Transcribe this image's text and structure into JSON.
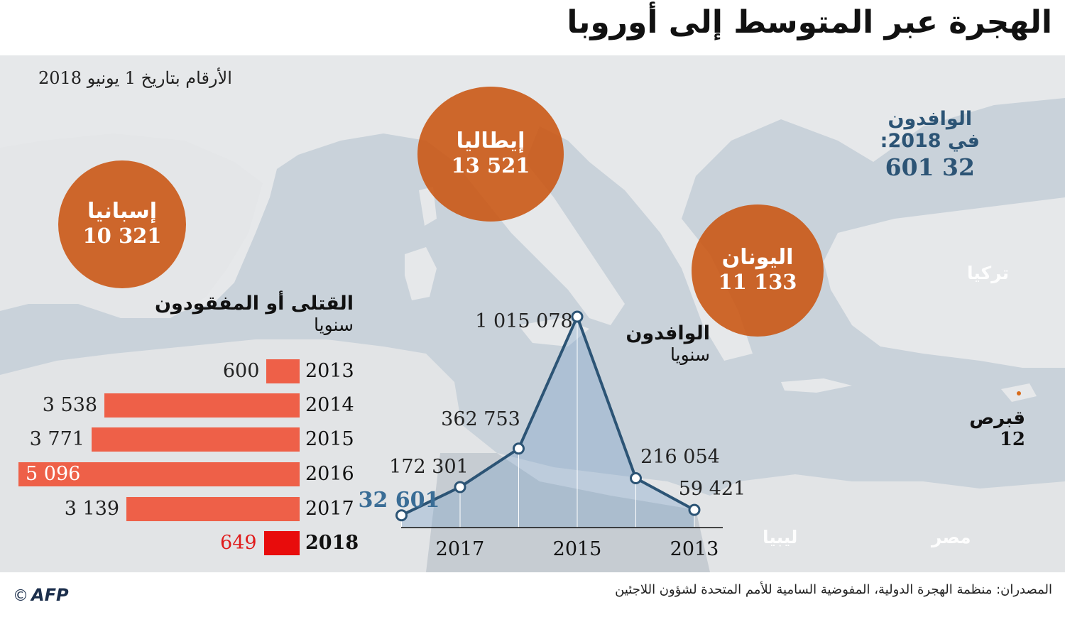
{
  "title": "الهجرة عبر المتوسط إلى أوروبا",
  "date_note": "الأرقام بتاريخ 1 يونيو 2018",
  "bubbles": {
    "spain": {
      "name": "إسبانيا",
      "value": "10 321"
    },
    "italy": {
      "name": "إيطاليا",
      "value": "13 521"
    },
    "greece": {
      "name": "اليونان",
      "value": "11 133"
    }
  },
  "total": {
    "line1": "الوافدون",
    "line2": "في 2018:",
    "value": "32 601"
  },
  "countries": {
    "turkey": "تركيا",
    "libya": "ليبيا",
    "egypt": "مصر"
  },
  "cyprus": {
    "name": "قبرص",
    "value": "12"
  },
  "deaths_title": {
    "line1": "القتلى أو المفقودون",
    "line2": "سنويا"
  },
  "arrivals_title": {
    "line1": "الوافدون",
    "line2": "سنويا"
  },
  "footer": {
    "source": "المصدران: منظمة الهجرة الدولية، المفوضية السامية للأمم المتحدة لشؤون اللاجئين",
    "logo": "AFP",
    "copyright": "©"
  },
  "colors": {
    "bubble": "#c95410",
    "bar": "#ee6048",
    "bar_highlight": "#e80c0c",
    "line": "#2c5475",
    "map_bg": "#dde2e6"
  },
  "chart_data": [
    {
      "type": "bar",
      "title": "القتلى أو المفقودون",
      "subtitle": "سنويا",
      "orientation": "horizontal",
      "categories": [
        "2013",
        "2014",
        "2015",
        "2016",
        "2017",
        "2018"
      ],
      "values": [
        600,
        3538,
        3771,
        5096,
        3139,
        649
      ],
      "labels": [
        "600",
        "3 538",
        "3 771",
        "5 096",
        "3 139",
        "649"
      ],
      "highlight": "2018"
    },
    {
      "type": "line",
      "title": "الوافدون",
      "subtitle": "سنويا",
      "x": [
        "2013",
        "2014",
        "2015",
        "2016",
        "2017",
        "2018"
      ],
      "values": [
        59421,
        216054,
        1015078,
        362753,
        172301,
        32601
      ],
      "labels": [
        "59 421",
        "216 054",
        "1 015 078",
        "362 753",
        "172 301",
        "32 601"
      ],
      "xticks": [
        "2013",
        "2015",
        "2017"
      ],
      "x_direction": "right-to-left"
    }
  ]
}
